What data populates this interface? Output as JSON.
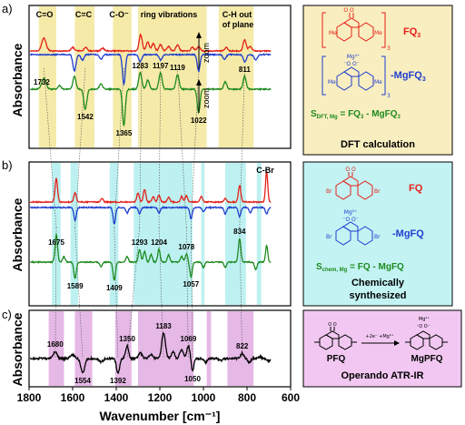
{
  "chart_data": {
    "type": "line",
    "xlabel": "Wavenumber [cm⁻¹]",
    "xlim": [
      1800,
      600
    ],
    "x_ticks": [
      "1800",
      "1600",
      "1400",
      "1200",
      "1000",
      "800",
      "600"
    ],
    "ylabel": "Absorbance",
    "colors": {
      "red": "#e32119",
      "blue": "#1f3fd0",
      "green": "#1e8a1e",
      "black": "#000000",
      "yellow_band": "#f5eaa8",
      "cyan_band": "#bdf1f1",
      "pink_band": "#e6b8e6",
      "yellow_box": "#f9eec0",
      "cyan_box": "#c3f3f3",
      "pink_box": "#f2c8f2"
    },
    "panels": [
      {
        "tag": "a)",
        "band_labels": [
          {
            "text": "C=O",
            "x": 1710
          },
          {
            "text": "C=C",
            "x": 1555
          },
          {
            "text": "C-O⁻",
            "x": 1370
          },
          {
            "text": "ring vibrations",
            "x": 1175
          },
          {
            "text": "C-H out",
            "x": 845
          },
          {
            "text": "of plane",
            "x": 845
          }
        ],
        "bands": [
          [
            1755,
            1675
          ],
          [
            1590,
            1500
          ],
          [
            1415,
            1330
          ],
          [
            1300,
            985
          ],
          [
            930,
            770
          ]
        ],
        "zoom_label": "zoom",
        "peak_labels": [
          {
            "text": "1732",
            "x": 1742,
            "pos": "above"
          },
          {
            "text": "1542",
            "x": 1542,
            "pos": "below"
          },
          {
            "text": "1365",
            "x": 1365,
            "pos": "below"
          },
          {
            "text": "1283",
            "x": 1290,
            "pos": "above"
          },
          {
            "text": "1197",
            "x": 1197,
            "pos": "above"
          },
          {
            "text": "1119",
            "x": 1119,
            "pos": "above"
          },
          {
            "text": "1022",
            "x": 1022,
            "pos": "below"
          },
          {
            "text": "811",
            "x": 811,
            "pos": "above"
          }
        ],
        "series": [
          {
            "name": "FQ",
            "color": "red",
            "baseline": 0.0,
            "peaks": [
              [
                1732,
                14,
                14
              ],
              [
                1600,
                4,
                10
              ],
              [
                1540,
                4,
                10
              ],
              [
                1462,
                3,
                10
              ],
              [
                1288,
                18,
                10
              ],
              [
                1256,
                10,
                10
              ],
              [
                1230,
                8,
                10
              ],
              [
                1197,
                7,
                10
              ],
              [
                1160,
                5,
                10
              ],
              [
                1119,
                7,
                10
              ],
              [
                1050,
                4,
                10
              ],
              [
                1022,
                5,
                10
              ],
              [
                895,
                4,
                10
              ],
              [
                811,
                12,
                10
              ],
              [
                785,
                5,
                10
              ]
            ]
          },
          {
            "name": "MgFQ",
            "color": "blue",
            "baseline": 0.0,
            "peaks": [
              [
                1592,
                -18,
                10
              ],
              [
                1555,
                -6,
                10
              ],
              [
                1470,
                -5,
                10
              ],
              [
                1365,
                -32,
                9
              ],
              [
                1290,
                -8,
                10
              ],
              [
                1196,
                -6,
                10
              ],
              [
                1022,
                -18,
                9
              ],
              [
                903,
                -5,
                10
              ],
              [
                810,
                -8,
                10
              ],
              [
                760,
                -6,
                10
              ]
            ]
          },
          {
            "name": "FQ - MgFQ",
            "color": "green",
            "baseline": 0.0,
            "peaks": [
              [
                1732,
                12,
                14
              ],
              [
                1660,
                4,
                10
              ],
              [
                1592,
                14,
                10
              ],
              [
                1542,
                -22,
                10
              ],
              [
                1470,
                6,
                10
              ],
              [
                1365,
                -40,
                9
              ],
              [
                1290,
                18,
                10
              ],
              [
                1255,
                10,
                10
              ],
              [
                1197,
                18,
                10
              ],
              [
                1119,
                16,
                10
              ],
              [
                1022,
                -26,
                9
              ],
              [
                900,
                8,
                10
              ],
              [
                811,
                14,
                10
              ]
            ]
          }
        ]
      },
      {
        "tag": "b)",
        "band_labels": [
          {
            "text": "C-Br",
            "x": 705
          }
        ],
        "bands": [
          [
            1695,
            1655
          ],
          [
            1610,
            1575
          ],
          [
            1430,
            1390
          ],
          [
            1320,
            1050
          ],
          [
            1010,
            995
          ],
          [
            900,
            805
          ],
          [
            755,
            735
          ]
        ],
        "peak_labels": [
          {
            "text": "1675",
            "x": 1675,
            "pos": "below"
          },
          {
            "text": "1589",
            "x": 1589,
            "pos": "below"
          },
          {
            "text": "1409",
            "x": 1409,
            "pos": "below"
          },
          {
            "text": "1293",
            "x": 1293,
            "pos": "above"
          },
          {
            "text": "1204",
            "x": 1204,
            "pos": "above"
          },
          {
            "text": "1078",
            "x": 1078,
            "pos": "above"
          },
          {
            "text": "1057",
            "x": 1057,
            "pos": "below"
          },
          {
            "text": "834",
            "x": 834,
            "pos": "above"
          }
        ],
        "series": [
          {
            "name": "FQ",
            "color": "red",
            "baseline": 0.0,
            "peaks": [
              [
                1675,
                26,
                8
              ],
              [
                1589,
                10,
                8
              ],
              [
                1465,
                4,
                8
              ],
              [
                1300,
                10,
                8
              ],
              [
                1270,
                14,
                8
              ],
              [
                1230,
                6,
                8
              ],
              [
                1204,
                8,
                8
              ],
              [
                1160,
                5,
                8
              ],
              [
                1100,
                6,
                8
              ],
              [
                1078,
                7,
                8
              ],
              [
                1010,
                6,
                8
              ],
              [
                900,
                4,
                8
              ],
              [
                834,
                18,
                8
              ],
              [
                710,
                34,
                7
              ]
            ]
          },
          {
            "name": "MgFQ",
            "color": "blue",
            "baseline": 0.0,
            "peaks": [
              [
                1589,
                -14,
                8
              ],
              [
                1409,
                -18,
                8
              ],
              [
                1350,
                -6,
                8
              ],
              [
                1293,
                -7,
                8
              ],
              [
                1204,
                -6,
                8
              ],
              [
                1057,
                -12,
                8
              ],
              [
                1000,
                -5,
                8
              ],
              [
                900,
                -7,
                8
              ],
              [
                834,
                -10,
                8
              ],
              [
                785,
                -6,
                8
              ],
              [
                710,
                -7,
                8
              ]
            ]
          },
          {
            "name": "FQ - MgFQ",
            "color": "green",
            "baseline": 0.0,
            "peaks": [
              [
                1675,
                30,
                8
              ],
              [
                1640,
                6,
                8
              ],
              [
                1589,
                -18,
                8
              ],
              [
                1470,
                -5,
                8
              ],
              [
                1409,
                -20,
                8
              ],
              [
                1350,
                6,
                8
              ],
              [
                1293,
                14,
                8
              ],
              [
                1270,
                12,
                8
              ],
              [
                1240,
                8,
                8
              ],
              [
                1204,
                14,
                8
              ],
              [
                1160,
                8,
                8
              ],
              [
                1100,
                6,
                8
              ],
              [
                1078,
                9,
                8
              ],
              [
                1057,
                -16,
                8
              ],
              [
                1000,
                -6,
                8
              ],
              [
                900,
                -6,
                8
              ],
              [
                834,
                26,
                8
              ],
              [
                760,
                -8,
                8
              ],
              [
                710,
                18,
                7
              ]
            ]
          }
        ]
      },
      {
        "tag": "c)",
        "bands": [
          [
            1710,
            1640
          ],
          [
            1590,
            1510
          ],
          [
            1405,
            1330
          ],
          [
            1300,
            1045
          ],
          [
            985,
            965
          ],
          [
            890,
            770
          ]
        ],
        "peak_labels": [
          {
            "text": "1680",
            "x": 1680,
            "pos": "above"
          },
          {
            "text": "1554",
            "x": 1554,
            "pos": "below"
          },
          {
            "text": "1392",
            "x": 1392,
            "pos": "below"
          },
          {
            "text": "1350",
            "x": 1350,
            "pos": "above"
          },
          {
            "text": "1183",
            "x": 1183,
            "pos": "above"
          },
          {
            "text": "1069",
            "x": 1069,
            "pos": "above"
          },
          {
            "text": "1050",
            "x": 1050,
            "pos": "below"
          },
          {
            "text": "822",
            "x": 822,
            "pos": "above"
          }
        ],
        "series": [
          {
            "name": "MgPFQ",
            "color": "black",
            "baseline": 0.0,
            "peaks": [
              [
                1680,
                8,
                12
              ],
              [
                1600,
                4,
                14
              ],
              [
                1554,
                -16,
                12
              ],
              [
                1470,
                -4,
                12
              ],
              [
                1392,
                -16,
                10
              ],
              [
                1350,
                14,
                10
              ],
              [
                1290,
                6,
                12
              ],
              [
                1240,
                4,
                12
              ],
              [
                1183,
                28,
                12
              ],
              [
                1140,
                8,
                10
              ],
              [
                1100,
                10,
                12
              ],
              [
                1069,
                14,
                10
              ],
              [
                1050,
                -14,
                8
              ],
              [
                990,
                -4,
                10
              ],
              [
                920,
                -2,
                10
              ],
              [
                822,
                6,
                10
              ],
              [
                790,
                -4,
                10
              ],
              [
                740,
                2,
                10
              ],
              [
                700,
                -3,
                10
              ]
            ]
          }
        ]
      }
    ],
    "tie_lines": [
      [
        1732,
        1675,
        1680
      ],
      [
        1542,
        1589,
        1554
      ],
      [
        1365,
        1409,
        1392
      ],
      [
        1283,
        1293,
        1350
      ],
      [
        1197,
        1204,
        1183
      ],
      [
        1119,
        1078,
        1069
      ],
      [
        1022,
        1057,
        1050
      ],
      [
        811,
        834,
        822
      ]
    ]
  },
  "legend_a": {
    "fq_label": "FQ",
    "fq_sub": "3",
    "mgfq_label": "-MgFQ",
    "mgfq_sub": "3",
    "mgfq_formula_prefix": "-Mg",
    "eq_prefix": "S",
    "eq_sub": "DFT, Mg",
    "eq_rest": " = FQ",
    "eq_rest_sub": "3",
    "eq_tail": " - MgFQ",
    "eq_tail_sub": "3",
    "caption": "DFT calculation",
    "mol_ion": "Mg²⁺",
    "me_label": "Me",
    "mol_sub": "3"
  },
  "legend_b": {
    "fq_label": "FQ",
    "mgfq_label": "-MgFQ",
    "eq_prefix": "S",
    "eq_sub": "chem, Mg",
    "eq_rest": " = FQ - MgFQ",
    "caption_1": "Chemically",
    "caption_2": "synthesized",
    "mol_ion": "Mg²⁺",
    "br_label": "Br"
  },
  "legend_c": {
    "pfq_label": "PFQ",
    "mgpfq_label": "MgPFQ",
    "arrow_label": "+2e⁻ +Mg²⁺",
    "caption": "Operando ATR-IR",
    "mol_ion": "Mg²⁺"
  }
}
